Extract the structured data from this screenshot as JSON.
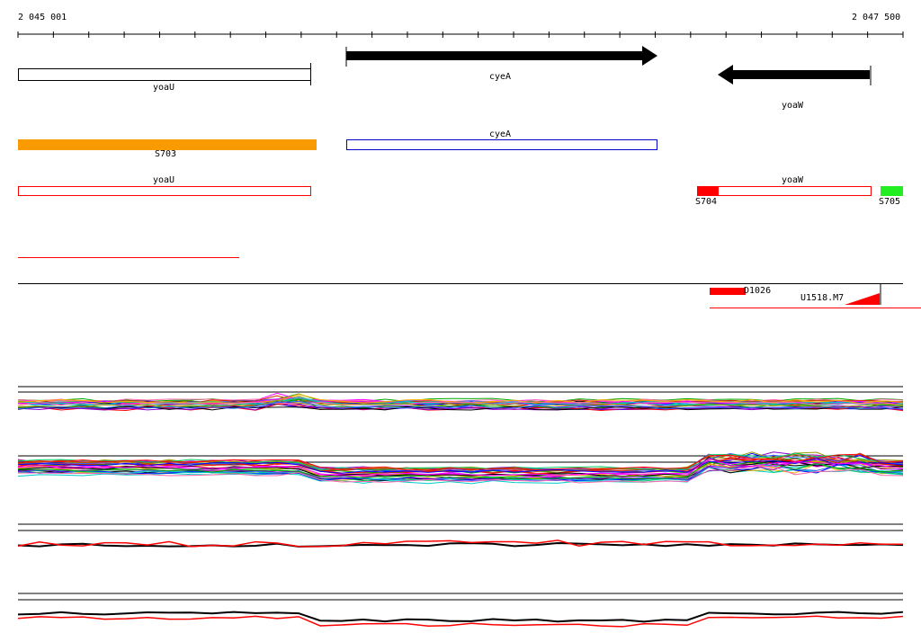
{
  "ruler": {
    "start_label": "2 045 001",
    "end_label": "2 047 500"
  },
  "genes": {
    "yoaU_top": "yoaU",
    "cyeA_top": "cyeA",
    "yoaW_top": "yoaW",
    "cyeA_mid": "cyeA",
    "yoaU_mid": "yoaU",
    "yoaW_mid": "yoaW"
  },
  "segments": {
    "s703": "S703",
    "s704": "S704",
    "s705": "S705"
  },
  "elements": {
    "d1026": "D1026",
    "u1518": "U1518.M7"
  },
  "colors": {
    "orange": "#f99a00",
    "blue": "#0000cc",
    "red": "#ff0000",
    "green": "#22ee22",
    "black": "#000000"
  }
}
